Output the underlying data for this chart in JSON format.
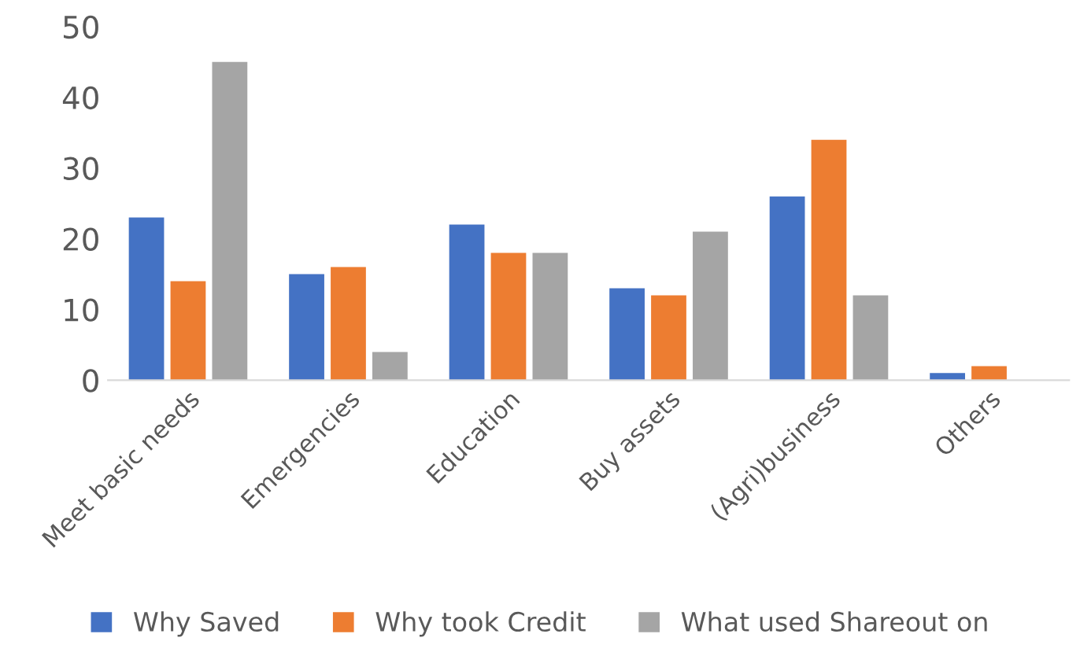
{
  "chart_data": {
    "type": "bar",
    "categories": [
      "Meet basic needs",
      "Emergencies",
      "Education",
      "Buy assets",
      "(Agri)business",
      "Others"
    ],
    "series": [
      {
        "name": "Why Saved",
        "color": "#4472c4",
        "values": [
          23,
          15,
          22,
          13,
          26,
          1
        ]
      },
      {
        "name": "Why took Credit",
        "color": "#ed7d31",
        "values": [
          14,
          16,
          18,
          12,
          34,
          2
        ]
      },
      {
        "name": "What used Shareout on",
        "color": "#a5a5a5",
        "values": [
          45,
          4,
          18,
          21,
          12,
          0
        ]
      }
    ],
    "ylim": [
      0,
      50
    ],
    "yticks": [
      0,
      10,
      20,
      30,
      40,
      50
    ],
    "grid": false,
    "legend": "bottom"
  }
}
